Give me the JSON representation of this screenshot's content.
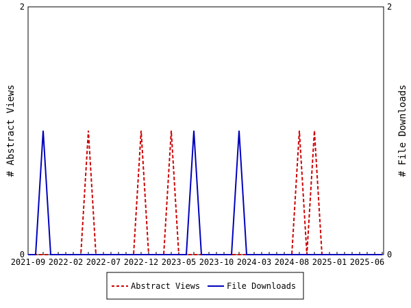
{
  "chart_data": {
    "type": "line",
    "x": [
      "2021-09",
      "2021-10",
      "2021-11",
      "2021-12",
      "2022-01",
      "2022-02",
      "2022-03",
      "2022-04",
      "2022-05",
      "2022-06",
      "2022-07",
      "2022-08",
      "2022-09",
      "2022-10",
      "2022-11",
      "2022-12",
      "2023-01",
      "2023-02",
      "2023-03",
      "2023-04",
      "2023-05",
      "2023-06",
      "2023-07",
      "2023-08",
      "2023-09",
      "2023-10",
      "2023-11",
      "2023-12",
      "2024-01",
      "2024-02",
      "2024-03",
      "2024-04",
      "2024-05",
      "2024-06",
      "2024-07",
      "2024-08",
      "2024-09",
      "2024-10",
      "2024-11",
      "2024-12",
      "2025-01",
      "2025-02",
      "2025-03",
      "2025-04",
      "2025-05",
      "2025-06",
      "2025-07",
      "2025-08"
    ],
    "tick_labels": [
      "2021-09",
      "2022-02",
      "2022-07",
      "2022-12",
      "2023-05",
      "2023-10",
      "2024-03",
      "2024-08",
      "2025-01",
      "2025-06"
    ],
    "series": [
      {
        "name": "Abstract Views",
        "color": "#cc0000",
        "dash": true,
        "values": [
          0,
          0,
          0,
          0,
          0,
          0,
          0,
          0,
          1,
          0,
          0,
          0,
          0,
          0,
          0,
          1,
          0,
          0,
          0,
          1,
          0,
          0,
          0,
          0,
          0,
          0,
          0,
          0,
          0,
          0,
          0,
          0,
          0,
          0,
          0,
          0,
          1,
          0,
          1,
          0,
          0,
          0,
          0,
          0,
          0,
          0,
          0,
          0
        ]
      },
      {
        "name": "File Downloads",
        "color": "#0000bb",
        "dash": false,
        "values": [
          0,
          0,
          1,
          0,
          0,
          0,
          0,
          0,
          0,
          0,
          0,
          0,
          0,
          0,
          0,
          0,
          0,
          0,
          0,
          0,
          0,
          0,
          1,
          0,
          0,
          0,
          0,
          0,
          1,
          0,
          0,
          0,
          0,
          0,
          0,
          0,
          0,
          0,
          0,
          0,
          0,
          0,
          0,
          0,
          0,
          0,
          0,
          0
        ]
      }
    ],
    "ylabel": "# Abstract Views",
    "y2label": "# File Downloads",
    "ylim": [
      0,
      2
    ],
    "yticks": [
      "0",
      "2"
    ],
    "legend": "bottom-center",
    "grid": false
  }
}
